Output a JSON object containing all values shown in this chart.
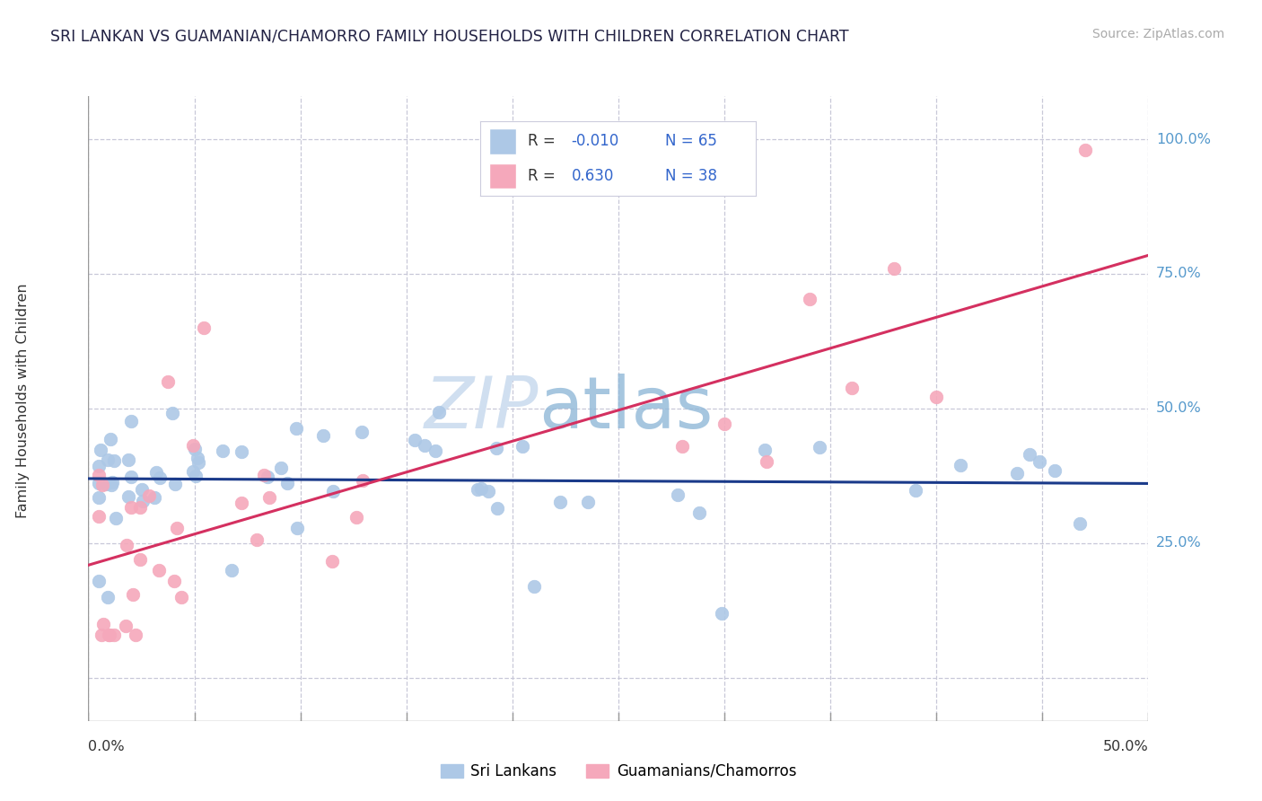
{
  "title": "SRI LANKAN VS GUAMANIAN/CHAMORRO FAMILY HOUSEHOLDS WITH CHILDREN CORRELATION CHART",
  "source": "Source: ZipAtlas.com",
  "ylabel": "Family Households with Children",
  "xlim": [
    0.0,
    0.5
  ],
  "ylim": [
    -0.08,
    1.08
  ],
  "sri_lankan_R": -0.01,
  "sri_lankan_N": 65,
  "guamanian_R": 0.63,
  "guamanian_N": 38,
  "sri_lankan_color": "#adc8e6",
  "guamanian_color": "#f5a8bb",
  "sri_lankan_line_color": "#1a3a8a",
  "guamanian_line_color": "#d43060",
  "background_color": "#ffffff",
  "grid_color": "#c8c8d8",
  "right_axis_color": "#5599cc",
  "watermark_zip_color": "#d0dff0",
  "watermark_atlas_color": "#90b8d8"
}
